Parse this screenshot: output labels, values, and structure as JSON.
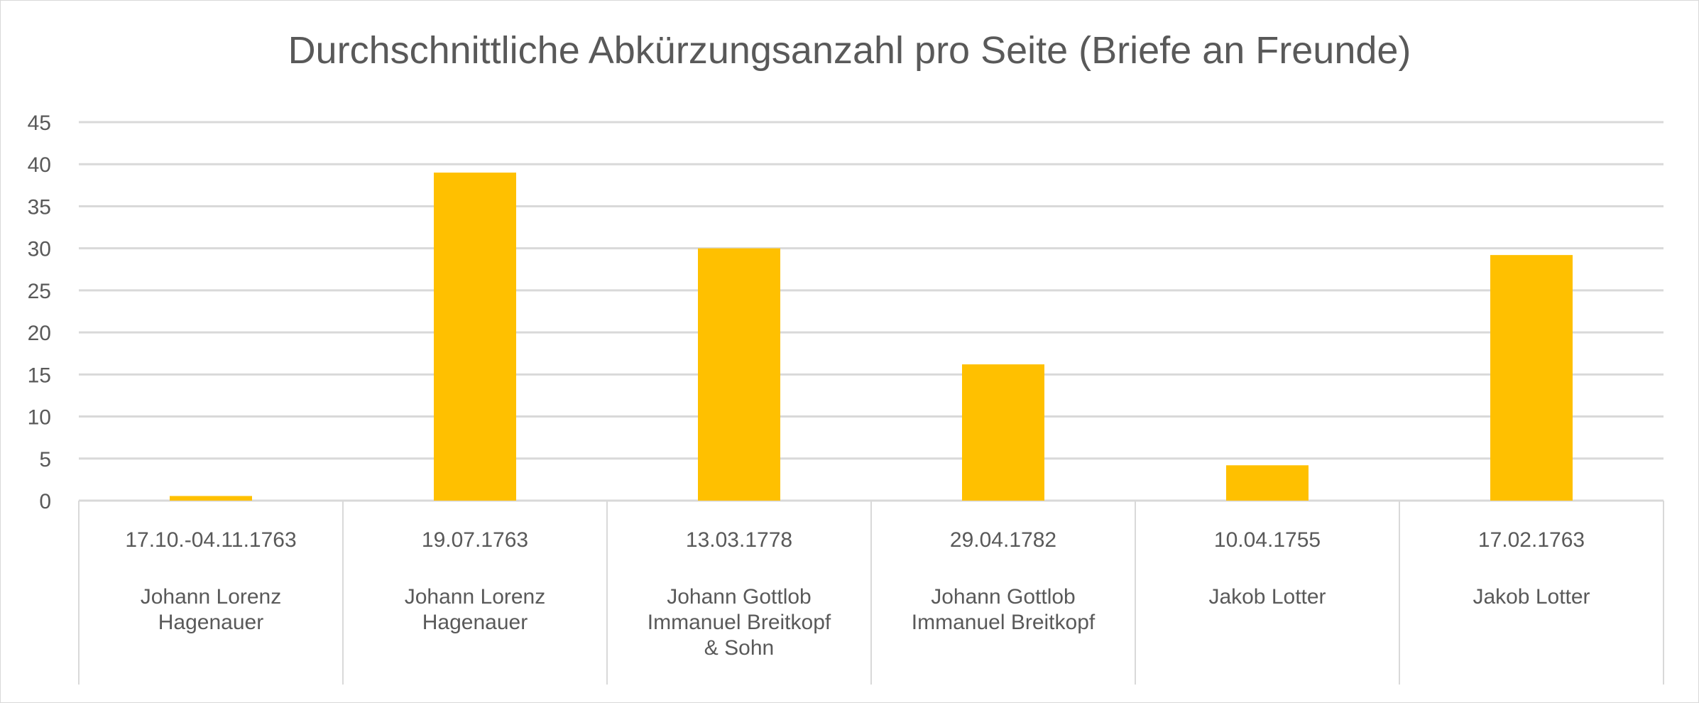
{
  "chart_data": {
    "type": "bar",
    "title": "Durchschnittliche Abkürzungsanzahl pro Seite (Briefe an Freunde)",
    "xlabel": "",
    "ylabel": "",
    "ylim": [
      0,
      45
    ],
    "yticks": [
      0,
      5,
      10,
      15,
      20,
      25,
      30,
      35,
      40,
      45
    ],
    "grid": true,
    "categories": [
      {
        "date": "17.10.-04.11.1763",
        "name": [
          "Johann Lorenz",
          "Hagenauer"
        ]
      },
      {
        "date": "19.07.1763",
        "name": [
          "Johann Lorenz",
          "Hagenauer"
        ]
      },
      {
        "date": "13.03.1778",
        "name": [
          "Johann Gottlob",
          "Immanuel Breitkopf",
          "& Sohn"
        ]
      },
      {
        "date": "29.04.1782",
        "name": [
          "Johann Gottlob",
          "Immanuel Breitkopf"
        ]
      },
      {
        "date": "10.04.1755",
        "name": [
          "Jakob Lotter"
        ]
      },
      {
        "date": "17.02.1763",
        "name": [
          "Jakob Lotter"
        ]
      }
    ],
    "values": [
      0.55,
      39.0,
      30.0,
      16.2,
      4.2,
      29.2
    ],
    "bar_color": "#FFC000",
    "grid_color": "#D9D9D9"
  }
}
